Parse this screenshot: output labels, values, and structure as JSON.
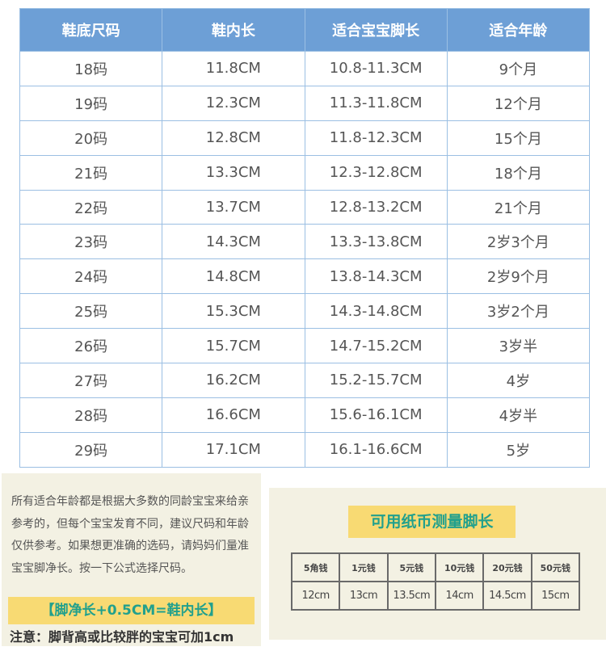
{
  "size_chart": {
    "headers": [
      "鞋底尺码",
      "鞋内长",
      "适合宝宝脚长",
      "适合年龄"
    ],
    "rows": [
      [
        "18码",
        "11.8CM",
        "10.8-11.3CM",
        "9个月"
      ],
      [
        "19码",
        "12.3CM",
        "11.3-11.8CM",
        "12个月"
      ],
      [
        "20码",
        "12.8CM",
        "11.8-12.3CM",
        "15个月"
      ],
      [
        "21码",
        "13.3CM",
        "12.3-12.8CM",
        "18个月"
      ],
      [
        "22码",
        "13.7CM",
        "12.8-13.2CM",
        "21个月"
      ],
      [
        "23码",
        "14.3CM",
        "13.3-13.8CM",
        "2岁3个月"
      ],
      [
        "24码",
        "14.8CM",
        "13.8-14.3CM",
        "2岁9个月"
      ],
      [
        "25码",
        "15.3CM",
        "14.3-14.8CM",
        "3岁2个月"
      ],
      [
        "26码",
        "15.7CM",
        "14.7-15.2CM",
        "3岁半"
      ],
      [
        "27码",
        "16.2CM",
        "15.2-15.7CM",
        "4岁"
      ],
      [
        "28码",
        "16.6CM",
        "15.6-16.1CM",
        "4岁半"
      ],
      [
        "29码",
        "17.1CM",
        "16.1-16.6CM",
        "5岁"
      ]
    ]
  },
  "note": {
    "text": "所有适合年龄都是根据大多数的同龄宝宝来给亲参考的，但每个宝宝发育不同，建议尺码和年龄仅供参考。如果想更准确的选码，请妈妈们量准宝宝脚净长。按一下公式选择尺码。",
    "formula": "【脚净长+0.5CM=鞋内长】",
    "warning": "注意：脚背高或比较胖的宝宝可加1cm"
  },
  "money_measure": {
    "title": "可用纸币测量脚长",
    "notes": [
      "5角钱",
      "1元钱",
      "5元钱",
      "10元钱",
      "20元钱",
      "50元钱"
    ],
    "lengths": [
      "12cm",
      "13cm",
      "13.5cm",
      "14cm",
      "14.5cm",
      "15cm"
    ]
  },
  "colors": {
    "header_bg": "#6d9fd6",
    "grid": "#9bbfe3",
    "panel_bg": "#f3f1e3",
    "highlight": "#f8da73",
    "accent_text": "#21a08d"
  }
}
